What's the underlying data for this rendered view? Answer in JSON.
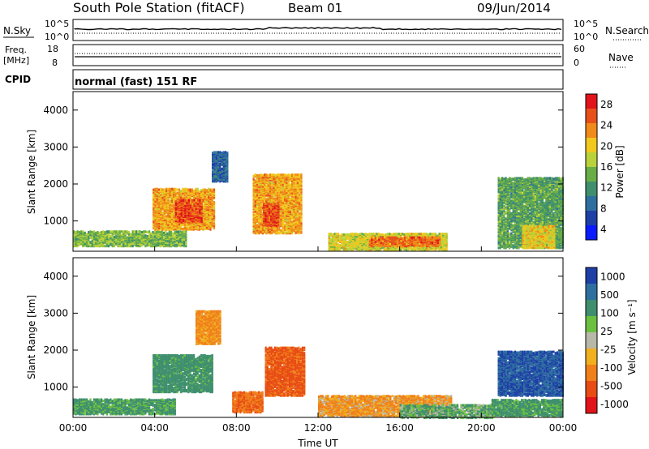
{
  "header": {
    "station": "South Pole Station (fitACF)",
    "beam": "Beam 01",
    "date": "09/Jun/2014"
  },
  "strip_panels": {
    "nsky": {
      "left_label": "N.Sky",
      "ticks_left": [
        "10^5",
        "10^0"
      ],
      "ticks_right": [
        "10^5",
        "10^0"
      ],
      "right_label": "N.Search"
    },
    "freq": {
      "left_label_1": "Freq.",
      "left_label_2": "[MHz]",
      "ticks_left": [
        "18",
        "8"
      ],
      "ticks_right": [
        "60",
        "0"
      ],
      "right_label": "Nave"
    },
    "cpid": {
      "left_label": "CPID",
      "text": "normal (fast) 151 RF"
    }
  },
  "colors": {
    "power_scale": [
      "#0a1cff",
      "#1e3fa6",
      "#2e6fa0",
      "#3f8f6e",
      "#68ad45",
      "#b9d23a",
      "#f0c81e",
      "#f08a1a",
      "#e8501a",
      "#e0141a"
    ],
    "velocity_scale": [
      "#e0141a",
      "#e84c14",
      "#f0801a",
      "#f0b020",
      "#b8b8a8",
      "#6cc040",
      "#3f8f6e",
      "#2e6fa0",
      "#1e3fa6"
    ]
  },
  "chart_data": [
    {
      "type": "heatmap",
      "name": "power",
      "ylabel": "Slant Range [km]",
      "yticks": [
        "4000",
        "3000",
        "2000",
        "1000"
      ],
      "ylim": [
        180,
        4500
      ],
      "xlim": [
        "00:00",
        "24:00"
      ],
      "colorbar": {
        "label": "Power [dB]",
        "ticks": [
          "28",
          "24",
          "20",
          "16",
          "12",
          "8",
          "4"
        ],
        "range": [
          0,
          30
        ]
      },
      "regions": [
        {
          "t0": 0.0,
          "t1": 5.5,
          "r0": 350,
          "r1": 750,
          "value": 14
        },
        {
          "t0": 3.9,
          "t1": 6.9,
          "r0": 800,
          "r1": 1900,
          "value": 22
        },
        {
          "t0": 5.0,
          "t1": 6.3,
          "r0": 1000,
          "r1": 1600,
          "value": 27
        },
        {
          "t0": 6.8,
          "t1": 7.6,
          "r0": 2100,
          "r1": 2900,
          "value": 6
        },
        {
          "t0": 8.8,
          "t1": 11.2,
          "r0": 700,
          "r1": 2300,
          "value": 22
        },
        {
          "t0": 9.3,
          "t1": 10.1,
          "r0": 900,
          "r1": 1500,
          "value": 27
        },
        {
          "t0": 12.5,
          "t1": 18.3,
          "r0": 250,
          "r1": 700,
          "value": 18
        },
        {
          "t0": 14.5,
          "t1": 18.0,
          "r0": 350,
          "r1": 600,
          "value": 25
        },
        {
          "t0": 20.8,
          "t1": 24.0,
          "r0": 300,
          "r1": 2200,
          "value": 12
        },
        {
          "t0": 22.0,
          "t1": 23.6,
          "r0": 300,
          "r1": 900,
          "value": 19
        }
      ]
    },
    {
      "type": "heatmap",
      "name": "velocity",
      "ylabel": "Slant Range [km]",
      "yticks": [
        "4000",
        "3000",
        "2000",
        "1000"
      ],
      "xticks": [
        "00:00",
        "04:00",
        "08:00",
        "12:00",
        "16:00",
        "20:00",
        "00:00"
      ],
      "xlabel": "Time UT",
      "ylim": [
        180,
        4500
      ],
      "xlim": [
        "00:00",
        "24:00"
      ],
      "colorbar": {
        "label": "Velocity [m s⁻¹]",
        "ticks": [
          "1000",
          "500",
          "100",
          "25",
          "-25",
          "-100",
          "-500",
          "-1000"
        ]
      },
      "regions": [
        {
          "t0": 0.0,
          "t1": 5.0,
          "r0": 300,
          "r1": 700,
          "value": 150
        },
        {
          "t0": 3.9,
          "t1": 6.8,
          "r0": 900,
          "r1": 1900,
          "value": 200
        },
        {
          "t0": 6.0,
          "t1": 7.2,
          "r0": 2200,
          "r1": 3100,
          "value": -150
        },
        {
          "t0": 7.8,
          "t1": 9.3,
          "r0": 350,
          "r1": 900,
          "value": -300
        },
        {
          "t0": 9.4,
          "t1": 11.3,
          "r0": 800,
          "r1": 2100,
          "value": -350
        },
        {
          "t0": 12.0,
          "t1": 18.5,
          "r0": 250,
          "r1": 800,
          "value": -120
        },
        {
          "t0": 16.0,
          "t1": 20.5,
          "r0": 200,
          "r1": 550,
          "value": 100
        },
        {
          "t0": 20.8,
          "t1": 24.0,
          "r0": 800,
          "r1": 2000,
          "value": 700
        },
        {
          "t0": 20.5,
          "t1": 24.0,
          "r0": 250,
          "r1": 700,
          "value": 150
        }
      ]
    }
  ]
}
